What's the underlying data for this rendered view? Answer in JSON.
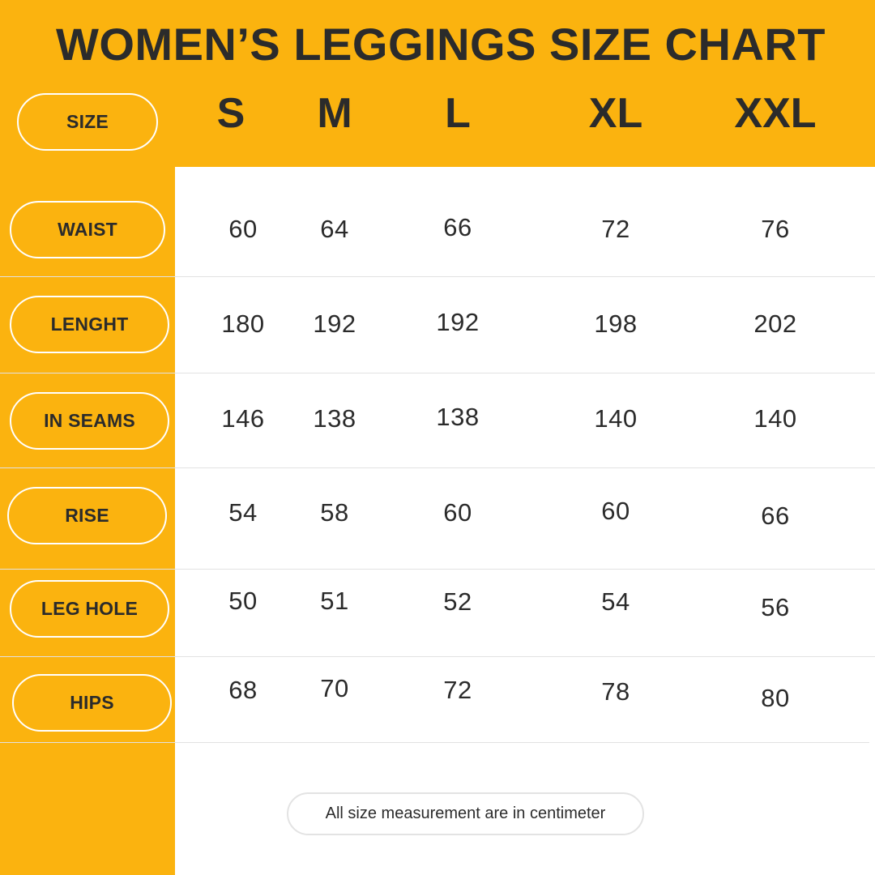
{
  "title": "WOMEN’S LEGGINGS SIZE CHART",
  "colors": {
    "accent": "#FBB30F",
    "text": "#2B2B2B",
    "background": "#FFFFFF",
    "divider": "#E2E2E2"
  },
  "size_label": "SIZE",
  "sizes": [
    "S",
    "M",
    "L",
    "XL",
    "XXL"
  ],
  "rows": [
    {
      "label": "WAIST",
      "values": [
        "60",
        "64",
        "66",
        "72",
        "76"
      ]
    },
    {
      "label": "LENGHT",
      "values": [
        "180",
        "192",
        "192",
        "198",
        "202"
      ]
    },
    {
      "label": "IN SEAMS",
      "values": [
        "146",
        "138",
        "138",
        "140",
        "140"
      ]
    },
    {
      "label": "RISE",
      "values": [
        "54",
        "58",
        "60",
        "60",
        "66"
      ]
    },
    {
      "label": "LEG HOLE",
      "values": [
        "50",
        "51",
        "52",
        "54",
        "56"
      ]
    },
    {
      "label": "HIPS",
      "values": [
        "68",
        "70",
        "72",
        "78",
        "80"
      ]
    }
  ],
  "footnote": "All size measurement are in centimeter"
}
